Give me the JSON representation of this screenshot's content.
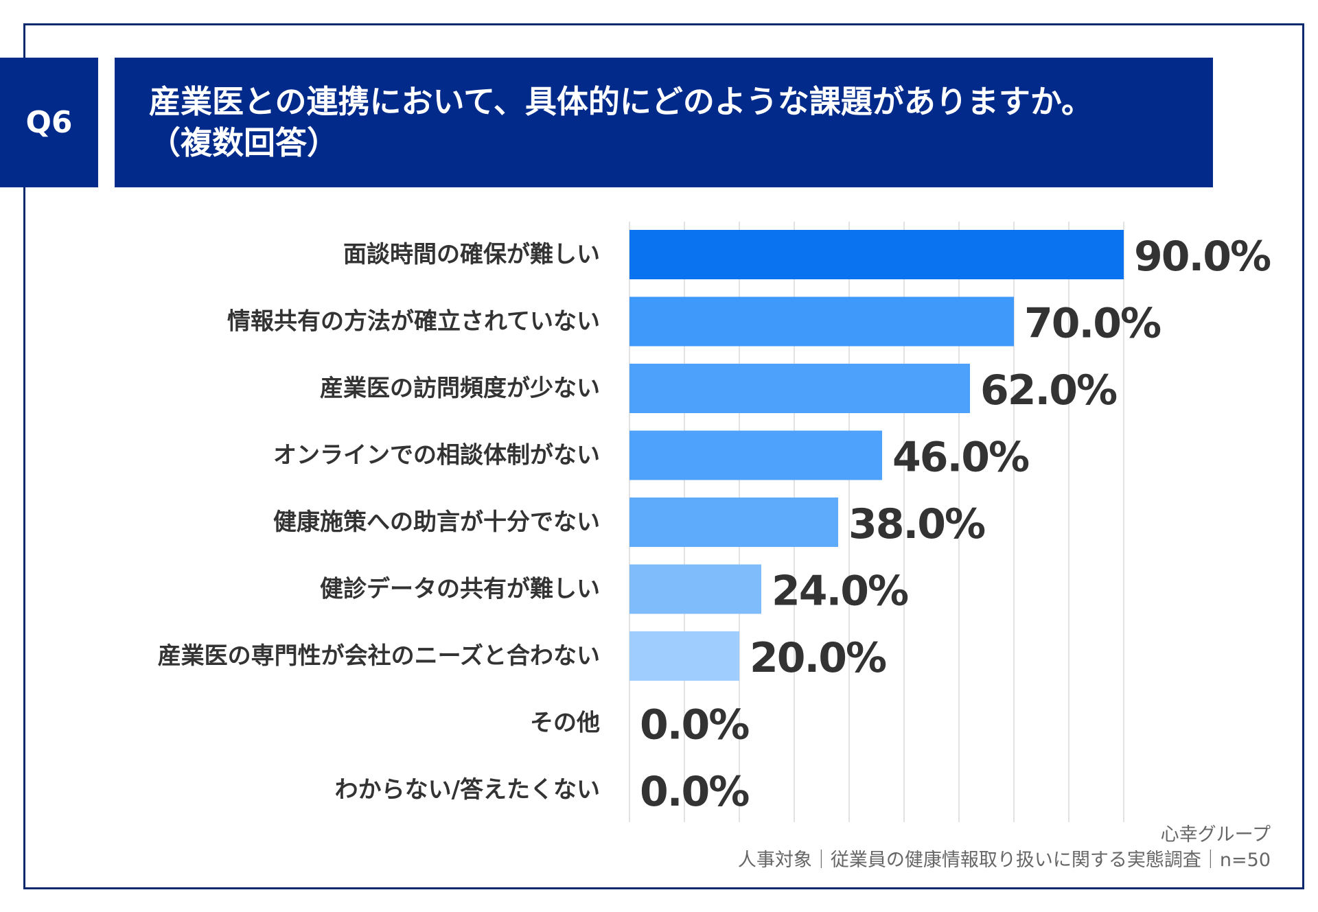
{
  "header": {
    "q_label": "Q6",
    "title_line1": "産業医との連携において、具体的にどのような課題がありますか。",
    "title_line2": "（複数回答）"
  },
  "footer": {
    "brand": "心幸グループ",
    "survey": "人事対象｜従業員の健康情報取り扱いに関する実態調査｜n=50"
  },
  "colors": {
    "header_bg": "#022a8a",
    "bar_colors": [
      "#0a74f0",
      "#3f99fb",
      "#4da1fb",
      "#4fa2fb",
      "#5fabfb",
      "#7fbcfc",
      "#9fcdfd",
      "#9fcdfd",
      "#9fcdfd"
    ]
  },
  "chart_data": {
    "type": "bar",
    "orientation": "horizontal",
    "categories": [
      "面談時間の確保が難しい",
      "情報共有の方法が確立されていない",
      "産業医の訪問頻度が少ない",
      "オンラインでの相談体制がない",
      "健康施策への助言が十分でない",
      "健診データの共有が難しい",
      "産業医の専門性が会社のニーズと合わない",
      "その他",
      "わからない/答えたくない"
    ],
    "values": [
      90.0,
      70.0,
      62.0,
      46.0,
      38.0,
      24.0,
      20.0,
      0.0,
      0.0
    ],
    "value_labels": [
      "90.0%",
      "70.0%",
      "62.0%",
      "46.0%",
      "38.0%",
      "24.0%",
      "20.0%",
      "0.0%",
      "0.0%"
    ],
    "xlim": [
      0,
      90
    ],
    "grid": true
  }
}
